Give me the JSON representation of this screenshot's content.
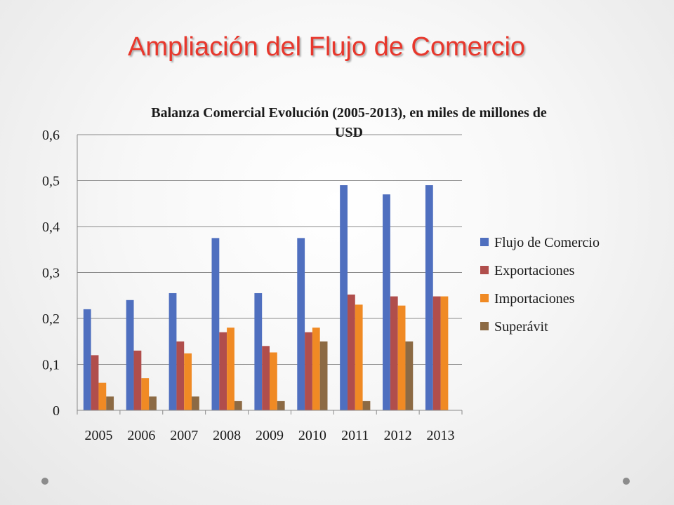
{
  "slide": {
    "title": "Ampliación del Flujo de Comercio"
  },
  "chart_data": {
    "type": "bar",
    "title_lines": [
      "Balanza Comercial Evolución (2005-2013), en miles de millones de",
      "USD"
    ],
    "categories": [
      "2005",
      "2006",
      "2007",
      "2008",
      "2009",
      "2010",
      "2011",
      "2012",
      "2013"
    ],
    "series": [
      {
        "name": "Flujo de Comercio",
        "color": "#4f6fbf",
        "values": [
          0.22,
          0.24,
          0.255,
          0.375,
          0.255,
          0.375,
          0.49,
          0.47,
          0.49
        ]
      },
      {
        "name": "Exportaciones",
        "color": "#b04e4c",
        "values": [
          0.12,
          0.13,
          0.15,
          0.17,
          0.14,
          0.17,
          0.252,
          0.248,
          0.248
        ]
      },
      {
        "name": "Importaciones",
        "color": "#f08a24",
        "values": [
          0.06,
          0.07,
          0.124,
          0.18,
          0.126,
          0.18,
          0.23,
          0.228,
          0.248
        ]
      },
      {
        "name": "Superávit",
        "color": "#8c6a44",
        "values": [
          0.03,
          0.03,
          0.03,
          0.02,
          0.02,
          0.15,
          0.02,
          0.15,
          0
        ]
      }
    ],
    "y_ticks": [
      "0",
      "0,1",
      "0,2",
      "0,3",
      "0,4",
      "0,5",
      "0,6"
    ],
    "ylim": [
      0,
      0.6
    ],
    "grid": true,
    "legend_position": "right"
  }
}
